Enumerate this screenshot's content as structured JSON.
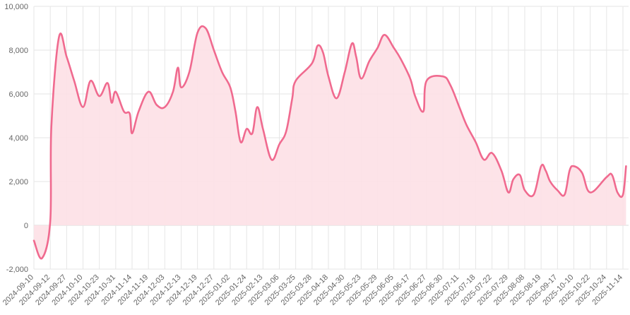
{
  "chart_data": {
    "type": "area",
    "title": "",
    "xlabel": "",
    "ylabel": "",
    "ylim": [
      -2000,
      10000
    ],
    "yticks": [
      -2000,
      0,
      2000,
      4000,
      6000,
      8000,
      10000
    ],
    "ytick_labels": [
      "-2,000",
      "0",
      "2,000",
      "4,000",
      "6,000",
      "8,000",
      "10,000"
    ],
    "grid": true,
    "legend": "none",
    "colors": {
      "line": "#f06a8f",
      "fill": "#fde0e6",
      "grid": "#e6e6e6",
      "text": "#666666"
    },
    "x_tick_labels": [
      "2024-09-10",
      "2024-09-12",
      "2024-09-27",
      "2024-10-10",
      "2024-10-23",
      "2024-10-31",
      "2024-11-14",
      "2024-11-19",
      "2024-12-03",
      "2024-12-13",
      "2024-12-19",
      "2024-12-27",
      "2025-01-02",
      "2025-01-24",
      "2025-02-13",
      "2025-03-06",
      "2025-03-25",
      "2025-03-28",
      "2025-04-18",
      "2025-04-30",
      "2025-05-23",
      "2025-05-29",
      "2025-06-05",
      "2025-06-17",
      "2025-06-27",
      "2025-06-30",
      "2025-07-11",
      "2025-07-18",
      "2025-07-22",
      "2025-07-29",
      "2025-08-08",
      "2025-08-19",
      "2025-09-17",
      "2025-10-10",
      "2025-10-22",
      "2025-10-24",
      "2025-11-14"
    ],
    "x": [
      "2024-09-10",
      "2024-09-11",
      "2024-09-12",
      "2024-09-13",
      "2024-09-20",
      "2024-09-27",
      "2024-10-03",
      "2024-10-10",
      "2024-10-16",
      "2024-10-23",
      "2024-10-27",
      "2024-10-29",
      "2024-10-31",
      "2024-11-07",
      "2024-11-12",
      "2024-11-14",
      "2024-11-16",
      "2024-11-19",
      "2024-11-26",
      "2024-12-03",
      "2024-12-08",
      "2024-12-11",
      "2024-12-13",
      "2024-12-16",
      "2024-12-19",
      "2024-12-23",
      "2024-12-27",
      "2024-12-30",
      "2025-01-02",
      "2025-01-09",
      "2025-01-16",
      "2025-01-24",
      "2025-01-31",
      "2025-02-06",
      "2025-02-13",
      "2025-02-24",
      "2025-03-06",
      "2025-03-14",
      "2025-03-21",
      "2025-03-25",
      "2025-03-28",
      "2025-04-04",
      "2025-04-11",
      "2025-04-18",
      "2025-04-24",
      "2025-04-30",
      "2025-05-10",
      "2025-05-16",
      "2025-05-23",
      "2025-05-26",
      "2025-05-29",
      "2025-06-01",
      "2025-06-05",
      "2025-06-10",
      "2025-06-17",
      "2025-06-20",
      "2025-06-25",
      "2025-06-27",
      "2025-06-30",
      "2025-07-05",
      "2025-07-11",
      "2025-07-14",
      "2025-07-18",
      "2025-07-20",
      "2025-07-22",
      "2025-07-26",
      "2025-07-29",
      "2025-08-01",
      "2025-08-05",
      "2025-08-08",
      "2025-08-14",
      "2025-08-19",
      "2025-08-27",
      "2025-09-04",
      "2025-09-17",
      "2025-09-27",
      "2025-10-04",
      "2025-10-10",
      "2025-10-16",
      "2025-10-22",
      "2025-10-24",
      "2025-10-31",
      "2025-11-07",
      "2025-11-14",
      "2025-11-18"
    ],
    "series": [
      {
        "values": [
          -700,
          -1500,
          200,
          4500,
          8600,
          7700,
          6600,
          5400,
          6600,
          5900,
          6500,
          5600,
          6100,
          5200,
          5100,
          4200,
          5200,
          6100,
          5500,
          5400,
          6100,
          7200,
          6300,
          7000,
          8800,
          9000,
          8000,
          7000,
          6300,
          5200,
          3800,
          4400,
          4200,
          5400,
          4400,
          3000,
          3700,
          4300,
          5800,
          6600,
          7400,
          8200,
          7900,
          6800,
          5800,
          7000,
          8300,
          7700,
          6700,
          7500,
          8100,
          8700,
          8100,
          7600,
          6700,
          5900,
          5200,
          6600,
          6800,
          6400,
          5400,
          4600,
          3800,
          3000,
          3300,
          2500,
          1500,
          2100,
          2300,
          1600,
          1400,
          2700,
          2500,
          2000,
          1600,
          1400,
          2500,
          2700,
          2400,
          1500,
          2200,
          2300,
          1500,
          1400,
          2700
        ]
      }
    ]
  }
}
